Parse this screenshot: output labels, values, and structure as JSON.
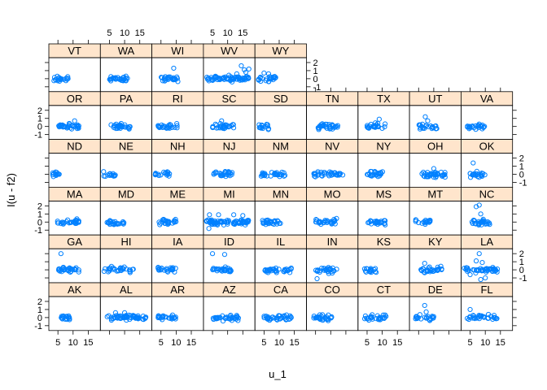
{
  "chart_data": {
    "type": "scatter",
    "layout": "lattice-trellis",
    "xlabel": "u_1",
    "ylabel": "I(u - f2)",
    "x_ticks": [
      "5",
      "10",
      "15"
    ],
    "x_tick_values": [
      5,
      10,
      15
    ],
    "y_ticks": [
      "-1",
      "0",
      "1",
      "2"
    ],
    "y_tick_values": [
      -1,
      0,
      1,
      2
    ],
    "xlim": [
      2,
      19
    ],
    "ylim": [
      -1.6,
      2.6
    ],
    "colors": {
      "points": "#0080ff",
      "strip": "#ffe5cc",
      "frame": "#000000"
    },
    "rows_top_to_bottom": [
      [
        "VT",
        "WA",
        "WI",
        "WV",
        "WY"
      ],
      [
        "OR",
        "PA",
        "RI",
        "SC",
        "SD",
        "TN",
        "TX",
        "UT",
        "VA"
      ],
      [
        "ND",
        "NE",
        "NH",
        "NJ",
        "NM",
        "NV",
        "NY",
        "OH",
        "OK"
      ],
      [
        "MA",
        "MD",
        "ME",
        "MI",
        "MN",
        "MO",
        "MS",
        "MT",
        "NC"
      ],
      [
        "GA",
        "HI",
        "IA",
        "ID",
        "IL",
        "IN",
        "KS",
        "KY",
        "LA"
      ],
      [
        "AK",
        "AL",
        "AR",
        "AZ",
        "CA",
        "CO",
        "CT",
        "DE",
        "FL"
      ]
    ],
    "panels": {
      "VT": {
        "xr": [
          3.5,
          8.5
        ],
        "n": 24,
        "out": []
      },
      "WA": {
        "xr": [
          5,
          11
        ],
        "n": 30,
        "out": []
      },
      "WI": {
        "xr": [
          5,
          11
        ],
        "n": 28,
        "out": [
          [
            9.2,
            1.3
          ]
        ]
      },
      "WV": {
        "xr": [
          3,
          17
        ],
        "n": 70,
        "out": [
          [
            14.5,
            1.6
          ],
          [
            15.5,
            1.1
          ],
          [
            16,
            0.8
          ],
          [
            17,
            1.2
          ],
          [
            13,
            0.6
          ]
        ]
      },
      "WY": {
        "xr": [
          3,
          9
        ],
        "n": 26,
        "out": [
          [
            5,
            0.7
          ],
          [
            6.5,
            0.6
          ]
        ]
      },
      "OR": {
        "xr": [
          5,
          12
        ],
        "n": 32,
        "out": [
          [
            10.5,
            0.7
          ]
        ]
      },
      "PA": {
        "xr": [
          5,
          12
        ],
        "n": 30,
        "out": []
      },
      "RI": {
        "xr": [
          4,
          11
        ],
        "n": 26,
        "out": []
      },
      "SC": {
        "xr": [
          5,
          12
        ],
        "n": 32,
        "out": [
          [
            8,
            0.7
          ]
        ]
      },
      "SD": {
        "xr": [
          3,
          7
        ],
        "n": 14,
        "out": []
      },
      "TN": {
        "xr": [
          5,
          13
        ],
        "n": 34,
        "out": []
      },
      "TX": {
        "xr": [
          5,
          11
        ],
        "n": 26,
        "out": [
          [
            9,
            0.9
          ]
        ]
      },
      "UT": {
        "xr": [
          5,
          11
        ],
        "n": 24,
        "out": [
          [
            7.2,
            1.2
          ],
          [
            8,
            0.7
          ]
        ]
      },
      "VA": {
        "xr": [
          4,
          10
        ],
        "n": 24,
        "out": []
      },
      "ND": {
        "xr": [
          3,
          6
        ],
        "n": 12,
        "out": []
      },
      "NE": {
        "xr": [
          3,
          7
        ],
        "n": 14,
        "out": []
      },
      "NH": {
        "xr": [
          3,
          8
        ],
        "n": 18,
        "out": []
      },
      "NJ": {
        "xr": [
          5,
          12
        ],
        "n": 28,
        "out": []
      },
      "NM": {
        "xr": [
          4,
          12
        ],
        "n": 28,
        "out": []
      },
      "NV": {
        "xr": [
          4,
          14
        ],
        "n": 38,
        "out": []
      },
      "NY": {
        "xr": [
          5,
          11
        ],
        "n": 26,
        "out": []
      },
      "OH": {
        "xr": [
          6,
          14
        ],
        "n": 36,
        "out": [
          [
            10,
            0.7
          ]
        ]
      },
      "OK": {
        "xr": [
          5,
          10
        ],
        "n": 22,
        "out": [
          [
            6,
            1.4
          ]
        ]
      },
      "MA": {
        "xr": [
          4,
          12
        ],
        "n": 30,
        "out": []
      },
      "MD": {
        "xr": [
          4,
          10
        ],
        "n": 24,
        "out": []
      },
      "ME": {
        "xr": [
          4,
          10
        ],
        "n": 24,
        "out": []
      },
      "MI": {
        "xr": [
          3,
          17
        ],
        "n": 80,
        "out": [
          [
            4,
            0.9
          ],
          [
            3.8,
            -0.8
          ],
          [
            7,
            0.9
          ],
          [
            12,
            0.9
          ],
          [
            15,
            0.8
          ]
        ]
      },
      "MN": {
        "xr": [
          4,
          11
        ],
        "n": 28,
        "out": []
      },
      "MO": {
        "xr": [
          5,
          12
        ],
        "n": 30,
        "out": []
      },
      "MS": {
        "xr": [
          5,
          11
        ],
        "n": 26,
        "out": []
      },
      "MT": {
        "xr": [
          4,
          9
        ],
        "n": 20,
        "out": []
      },
      "NC": {
        "xr": [
          5,
          12
        ],
        "n": 30,
        "out": [
          [
            7,
            1.9
          ],
          [
            8,
            2.1
          ],
          [
            8.5,
            1.0
          ]
        ]
      },
      "GA": {
        "xr": [
          5,
          12
        ],
        "n": 30,
        "out": [
          [
            6,
            2.0
          ]
        ]
      },
      "HI": {
        "xr": [
          3,
          13
        ],
        "n": 30,
        "out": []
      },
      "IA": {
        "xr": [
          4,
          10
        ],
        "n": 24,
        "out": []
      },
      "ID": {
        "xr": [
          5,
          12
        ],
        "n": 26,
        "out": [
          [
            5,
            2.0
          ],
          [
            9,
            1.9
          ]
        ]
      },
      "IL": {
        "xr": [
          5,
          14
        ],
        "n": 38,
        "out": []
      },
      "IN": {
        "xr": [
          5,
          12
        ],
        "n": 30,
        "out": [
          [
            5.5,
            -1.1
          ]
        ]
      },
      "KS": {
        "xr": [
          4,
          8
        ],
        "n": 18,
        "out": []
      },
      "KY": {
        "xr": [
          5,
          13
        ],
        "n": 32,
        "out": [
          [
            7,
            0.8
          ]
        ]
      },
      "LA": {
        "xr": [
          3,
          14
        ],
        "n": 44,
        "out": [
          [
            8,
            2.0
          ],
          [
            7,
            1.1
          ],
          [
            8.5,
            -1.2
          ],
          [
            5,
            -0.6
          ],
          [
            10,
            -1.0
          ],
          [
            9,
            0.9
          ]
        ]
      },
      "AK": {
        "xr": [
          6,
          9
        ],
        "n": 18,
        "out": []
      },
      "AL": {
        "xr": [
          4,
          17
        ],
        "n": 60,
        "out": [
          [
            7,
            0.6
          ],
          [
            10,
            0.6
          ]
        ]
      },
      "AR": {
        "xr": [
          4,
          10
        ],
        "n": 24,
        "out": []
      },
      "AZ": {
        "xr": [
          5,
          14
        ],
        "n": 36,
        "out": []
      },
      "CA": {
        "xr": [
          5,
          14
        ],
        "n": 38,
        "out": []
      },
      "CO": {
        "xr": [
          4,
          11
        ],
        "n": 28,
        "out": []
      },
      "CT": {
        "xr": [
          4,
          12
        ],
        "n": 28,
        "out": []
      },
      "DE": {
        "xr": [
          4,
          10
        ],
        "n": 22,
        "out": [
          [
            7,
            1.5
          ],
          [
            7.5,
            0.7
          ]
        ]
      },
      "FL": {
        "xr": [
          4,
          14
        ],
        "n": 34,
        "out": [
          [
            5,
            1.0
          ]
        ]
      }
    }
  }
}
